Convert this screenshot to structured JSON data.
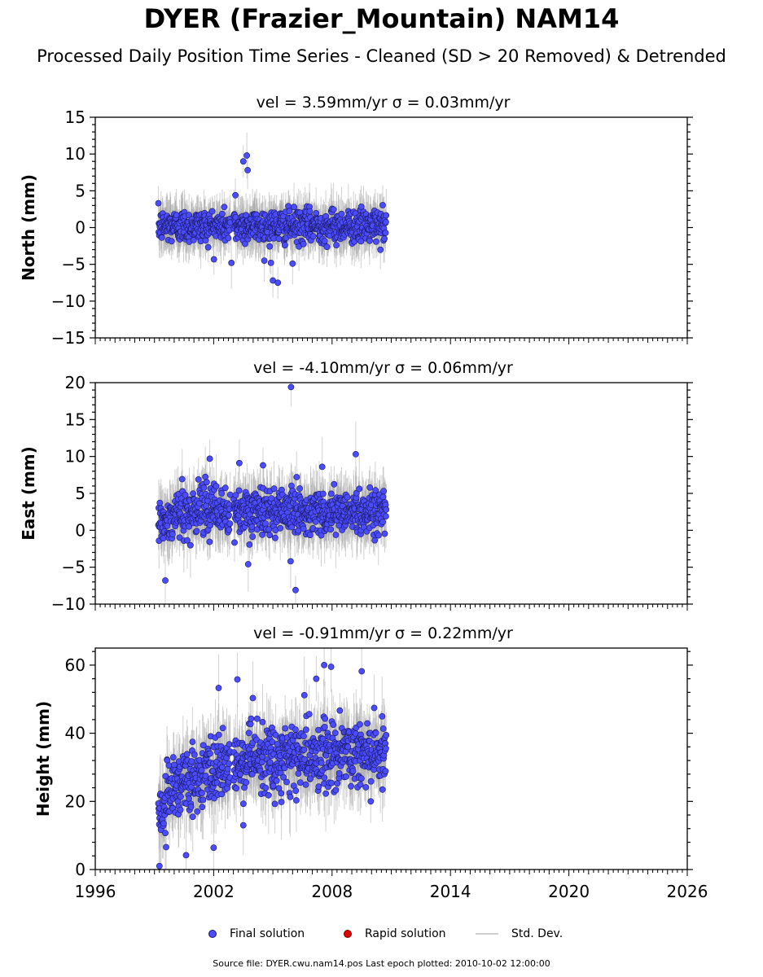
{
  "title": "DYER (Frazier_Mountain) NAM14",
  "subtitle": "Processed Daily Position Time Series - Cleaned (SD > 20 Removed) & Detrended",
  "footer": "Source file: DYER.cwu.nam14.pos  Last epoch plotted: 2010-10-02 12:00:00",
  "legend": {
    "final": "Final solution",
    "rapid": "Rapid solution",
    "std": "Std. Dev."
  },
  "colors": {
    "final_fill": "#4b4bff",
    "final_edge": "#1a1a60",
    "rapid": "#e00000",
    "std_dev": "#9a9a9a"
  },
  "chart_data": [
    {
      "type": "scatter",
      "title": "vel = 3.59mm/yr   σ = 0.03mm/yr",
      "vel": "vel = 3.59mm/yr",
      "sigma": "σ = 0.03mm/yr",
      "ylabel": "North (mm)",
      "xlim": [
        1996,
        2026
      ],
      "ylim": [
        -15,
        15
      ],
      "yticks": [
        -15,
        -10,
        -5,
        0,
        5,
        10,
        15
      ],
      "data_span": [
        1999.2,
        2010.75
      ],
      "gap": [
        2002.85,
        2003.0
      ],
      "baseline": {
        "type": "flat",
        "value": 0.2
      },
      "spread": 1.4,
      "std_len": 2.5,
      "outliers": [
        [
          2003.68,
          9.8
        ],
        [
          2003.72,
          7.8
        ],
        [
          2003.1,
          4.4
        ],
        [
          2004.9,
          -4.8
        ],
        [
          2005.0,
          -7.2
        ],
        [
          2005.25,
          -7.5
        ],
        [
          2006.0,
          -4.9
        ],
        [
          2002.9,
          -4.8
        ],
        [
          2003.5,
          9.0
        ]
      ]
    },
    {
      "type": "scatter",
      "title": "vel = -4.10mm/yr   σ = 0.06mm/yr",
      "vel": "vel = -4.10mm/yr",
      "sigma": "σ = 0.06mm/yr",
      "ylabel": "East (mm)",
      "xlim": [
        1996,
        2026
      ],
      "ylim": [
        -10,
        20
      ],
      "yticks": [
        -10,
        -5,
        0,
        5,
        10,
        15,
        20
      ],
      "data_span": [
        1999.2,
        2010.75
      ],
      "gap": [
        2002.85,
        2003.0
      ],
      "baseline": {
        "type": "ramp",
        "points": [
          [
            1999.2,
            0.5
          ],
          [
            2000.5,
            2.5
          ],
          [
            2010.75,
            2.5
          ]
        ]
      },
      "spread": 1.9,
      "std_len": 3.0,
      "outliers": [
        [
          2005.92,
          19.4
        ],
        [
          1999.55,
          -6.8
        ],
        [
          2006.15,
          -8.1
        ],
        [
          2003.75,
          -4.6
        ],
        [
          2009.2,
          10.3
        ],
        [
          2003.3,
          9.1
        ],
        [
          2001.8,
          9.7
        ],
        [
          2004.5,
          8.8
        ],
        [
          2005.9,
          -4.2
        ],
        [
          2007.5,
          8.6
        ]
      ]
    },
    {
      "type": "scatter",
      "title": "vel = -0.91mm/yr   σ = 0.22mm/yr",
      "vel": "vel = -0.91mm/yr",
      "sigma": "σ = 0.22mm/yr",
      "ylabel": "Height (mm)",
      "xlim": [
        1996,
        2026
      ],
      "ylim": [
        0,
        65
      ],
      "yticks": [
        0,
        20,
        40,
        60
      ],
      "xticks": [
        1996,
        2002,
        2008,
        2014,
        2020,
        2026
      ],
      "data_span": [
        1999.2,
        2010.75
      ],
      "gap": [
        2002.85,
        2003.0
      ],
      "baseline": {
        "type": "ramp",
        "points": [
          [
            1999.2,
            16
          ],
          [
            2000.0,
            24
          ],
          [
            2002.8,
            31
          ],
          [
            2003.0,
            31
          ],
          [
            2010.75,
            35
          ]
        ]
      },
      "spread": 6.0,
      "std_len": 8.0,
      "outliers": [
        [
          2007.6,
          60.0
        ],
        [
          2007.95,
          59.5
        ],
        [
          2009.5,
          58.2
        ],
        [
          2003.2,
          55.8
        ],
        [
          2002.25,
          53.3
        ],
        [
          2007.2,
          56.0
        ],
        [
          1999.25,
          1.0
        ],
        [
          2002.0,
          6.4
        ],
        [
          2000.6,
          4.2
        ],
        [
          2003.5,
          13.0
        ]
      ]
    }
  ]
}
